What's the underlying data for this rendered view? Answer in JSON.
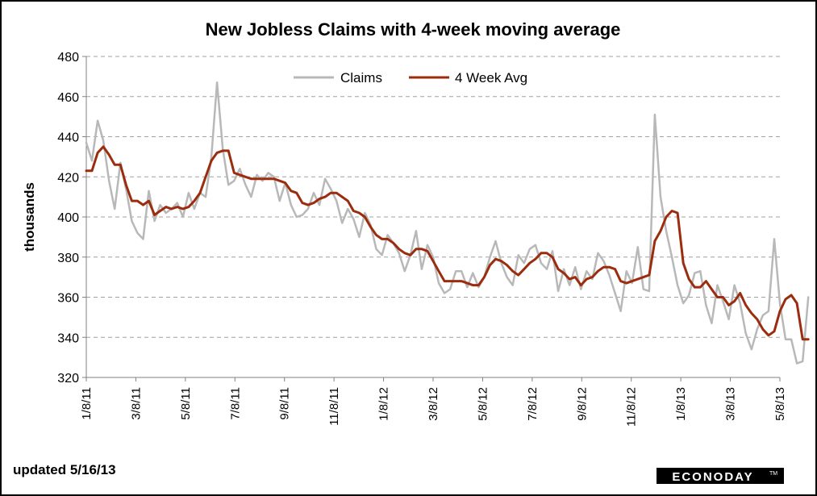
{
  "chart_data": {
    "type": "line",
    "title": "New Jobless Claims with 4-week moving average",
    "ylabel": "thousands",
    "xlabel": "",
    "ylim": [
      320,
      480
    ],
    "yticks": [
      320,
      340,
      360,
      380,
      400,
      420,
      440,
      460,
      480
    ],
    "xtick_labels": [
      "1/8/11",
      "3/8/11",
      "5/8/11",
      "7/8/11",
      "9/8/11",
      "11/8/11",
      "1/8/12",
      "3/8/12",
      "5/8/12",
      "7/8/12",
      "9/8/12",
      "11/8/12",
      "1/8/13",
      "3/8/13",
      "5/8/13"
    ],
    "x_range_weeks": [
      0,
      122
    ],
    "grid": "horizontal dashed",
    "legend": "top-center",
    "series": [
      {
        "name": "Claims",
        "color": "#b8b8b8",
        "points": [
          [
            0,
            437
          ],
          [
            1,
            428
          ],
          [
            2,
            448
          ],
          [
            3,
            438
          ],
          [
            4,
            418
          ],
          [
            5,
            404
          ],
          [
            6,
            427
          ],
          [
            7,
            414
          ],
          [
            8,
            398
          ],
          [
            9,
            392
          ],
          [
            10,
            389
          ],
          [
            11,
            413
          ],
          [
            12,
            398
          ],
          [
            13,
            406
          ],
          [
            14,
            402
          ],
          [
            15,
            404
          ],
          [
            16,
            407
          ],
          [
            17,
            400
          ],
          [
            18,
            412
          ],
          [
            19,
            404
          ],
          [
            20,
            412
          ],
          [
            21,
            410
          ],
          [
            22,
            430
          ],
          [
            23,
            467
          ],
          [
            24,
            434
          ],
          [
            25,
            416
          ],
          [
            26,
            418
          ],
          [
            27,
            424
          ],
          [
            28,
            416
          ],
          [
            29,
            410
          ],
          [
            30,
            421
          ],
          [
            31,
            418
          ],
          [
            32,
            422
          ],
          [
            33,
            420
          ],
          [
            34,
            408
          ],
          [
            35,
            417
          ],
          [
            36,
            406
          ],
          [
            37,
            400
          ],
          [
            38,
            401
          ],
          [
            39,
            404
          ],
          [
            40,
            412
          ],
          [
            41,
            406
          ],
          [
            42,
            419
          ],
          [
            43,
            414
          ],
          [
            44,
            408
          ],
          [
            45,
            397
          ],
          [
            46,
            404
          ],
          [
            47,
            399
          ],
          [
            48,
            390
          ],
          [
            49,
            402
          ],
          [
            50,
            396
          ],
          [
            51,
            384
          ],
          [
            52,
            381
          ],
          [
            53,
            391
          ],
          [
            54,
            387
          ],
          [
            55,
            382
          ],
          [
            56,
            373
          ],
          [
            57,
            381
          ],
          [
            58,
            393
          ],
          [
            59,
            374
          ],
          [
            60,
            386
          ],
          [
            61,
            380
          ],
          [
            62,
            367
          ],
          [
            63,
            362
          ],
          [
            64,
            364
          ],
          [
            65,
            373
          ],
          [
            66,
            373
          ],
          [
            67,
            365
          ],
          [
            68,
            372
          ],
          [
            69,
            365
          ],
          [
            70,
            370
          ],
          [
            71,
            380
          ],
          [
            72,
            388
          ],
          [
            73,
            377
          ],
          [
            74,
            370
          ],
          [
            75,
            366
          ],
          [
            76,
            381
          ],
          [
            77,
            377
          ],
          [
            78,
            384
          ],
          [
            79,
            386
          ],
          [
            80,
            377
          ],
          [
            81,
            374
          ],
          [
            82,
            383
          ],
          [
            83,
            363
          ],
          [
            84,
            374
          ],
          [
            85,
            366
          ],
          [
            86,
            375
          ],
          [
            87,
            364
          ],
          [
            88,
            373
          ],
          [
            89,
            369
          ],
          [
            90,
            382
          ],
          [
            91,
            378
          ],
          [
            92,
            371
          ],
          [
            93,
            362
          ],
          [
            94,
            353
          ],
          [
            95,
            373
          ],
          [
            96,
            367
          ],
          [
            97,
            385
          ],
          [
            98,
            364
          ],
          [
            99,
            363
          ],
          [
            100,
            451
          ],
          [
            101,
            410
          ],
          [
            102,
            393
          ],
          [
            103,
            380
          ],
          [
            104,
            366
          ],
          [
            105,
            357
          ],
          [
            106,
            361
          ],
          [
            107,
            372
          ],
          [
            108,
            373
          ],
          [
            109,
            356
          ],
          [
            110,
            347
          ],
          [
            111,
            366
          ],
          [
            112,
            358
          ],
          [
            113,
            349
          ],
          [
            114,
            366
          ],
          [
            115,
            357
          ],
          [
            116,
            342
          ],
          [
            117,
            334
          ],
          [
            118,
            344
          ],
          [
            119,
            351
          ],
          [
            120,
            353
          ],
          [
            121,
            389
          ],
          [
            122,
            357
          ],
          [
            123,
            339
          ],
          [
            124,
            339
          ],
          [
            125,
            327
          ],
          [
            126,
            328
          ],
          [
            127,
            360
          ]
        ]
      },
      {
        "name": "4 Week Avg",
        "color": "#9b2d0e",
        "points": [
          [
            0,
            423
          ],
          [
            1,
            423
          ],
          [
            2,
            432
          ],
          [
            3,
            435
          ],
          [
            4,
            431
          ],
          [
            5,
            426
          ],
          [
            6,
            426
          ],
          [
            7,
            416
          ],
          [
            8,
            408
          ],
          [
            9,
            408
          ],
          [
            10,
            406
          ],
          [
            11,
            408
          ],
          [
            12,
            401
          ],
          [
            13,
            403
          ],
          [
            14,
            405
          ],
          [
            15,
            404
          ],
          [
            16,
            405
          ],
          [
            17,
            404
          ],
          [
            18,
            405
          ],
          [
            19,
            408
          ],
          [
            20,
            412
          ],
          [
            21,
            420
          ],
          [
            22,
            428
          ],
          [
            23,
            432
          ],
          [
            24,
            433
          ],
          [
            25,
            433
          ],
          [
            26,
            422
          ],
          [
            27,
            421
          ],
          [
            28,
            420
          ],
          [
            29,
            419
          ],
          [
            30,
            419
          ],
          [
            31,
            419
          ],
          [
            32,
            419
          ],
          [
            33,
            419
          ],
          [
            34,
            418
          ],
          [
            35,
            417
          ],
          [
            36,
            413
          ],
          [
            37,
            412
          ],
          [
            38,
            407
          ],
          [
            39,
            406
          ],
          [
            40,
            407
          ],
          [
            41,
            409
          ],
          [
            42,
            410
          ],
          [
            43,
            412
          ],
          [
            44,
            412
          ],
          [
            45,
            410
          ],
          [
            46,
            408
          ],
          [
            47,
            403
          ],
          [
            48,
            402
          ],
          [
            49,
            400
          ],
          [
            50,
            395
          ],
          [
            51,
            391
          ],
          [
            52,
            389
          ],
          [
            53,
            389
          ],
          [
            54,
            387
          ],
          [
            55,
            384
          ],
          [
            56,
            382
          ],
          [
            57,
            381
          ],
          [
            58,
            384
          ],
          [
            59,
            384
          ],
          [
            60,
            383
          ],
          [
            61,
            378
          ],
          [
            62,
            373
          ],
          [
            63,
            368
          ],
          [
            64,
            368
          ],
          [
            65,
            368
          ],
          [
            66,
            368
          ],
          [
            67,
            367
          ],
          [
            68,
            366
          ],
          [
            69,
            366
          ],
          [
            70,
            370
          ],
          [
            71,
            376
          ],
          [
            72,
            379
          ],
          [
            73,
            378
          ],
          [
            74,
            376
          ],
          [
            75,
            373
          ],
          [
            76,
            371
          ],
          [
            77,
            374
          ],
          [
            78,
            377
          ],
          [
            79,
            379
          ],
          [
            80,
            382
          ],
          [
            81,
            382
          ],
          [
            82,
            380
          ],
          [
            83,
            374
          ],
          [
            84,
            372
          ],
          [
            85,
            369
          ],
          [
            86,
            370
          ],
          [
            87,
            366
          ],
          [
            88,
            369
          ],
          [
            89,
            370
          ],
          [
            90,
            373
          ],
          [
            91,
            375
          ],
          [
            92,
            375
          ],
          [
            93,
            374
          ],
          [
            94,
            368
          ],
          [
            95,
            367
          ],
          [
            96,
            368
          ],
          [
            97,
            369
          ],
          [
            98,
            370
          ],
          [
            99,
            371
          ],
          [
            100,
            388
          ],
          [
            101,
            393
          ],
          [
            102,
            400
          ],
          [
            103,
            403
          ],
          [
            104,
            402
          ],
          [
            105,
            377
          ],
          [
            106,
            369
          ],
          [
            107,
            365
          ],
          [
            108,
            365
          ],
          [
            109,
            368
          ],
          [
            110,
            364
          ],
          [
            111,
            360
          ],
          [
            112,
            360
          ],
          [
            113,
            356
          ],
          [
            114,
            358
          ],
          [
            115,
            362
          ],
          [
            116,
            356
          ],
          [
            117,
            352
          ],
          [
            118,
            349
          ],
          [
            119,
            344
          ],
          [
            120,
            341
          ],
          [
            121,
            343
          ],
          [
            122,
            353
          ],
          [
            123,
            359
          ],
          [
            124,
            361
          ],
          [
            125,
            357
          ],
          [
            126,
            339
          ],
          [
            127,
            339
          ]
        ]
      }
    ]
  },
  "footnote": "updated 5/16/13",
  "logo": {
    "text": "ECONODAY",
    "tm": "TM"
  }
}
